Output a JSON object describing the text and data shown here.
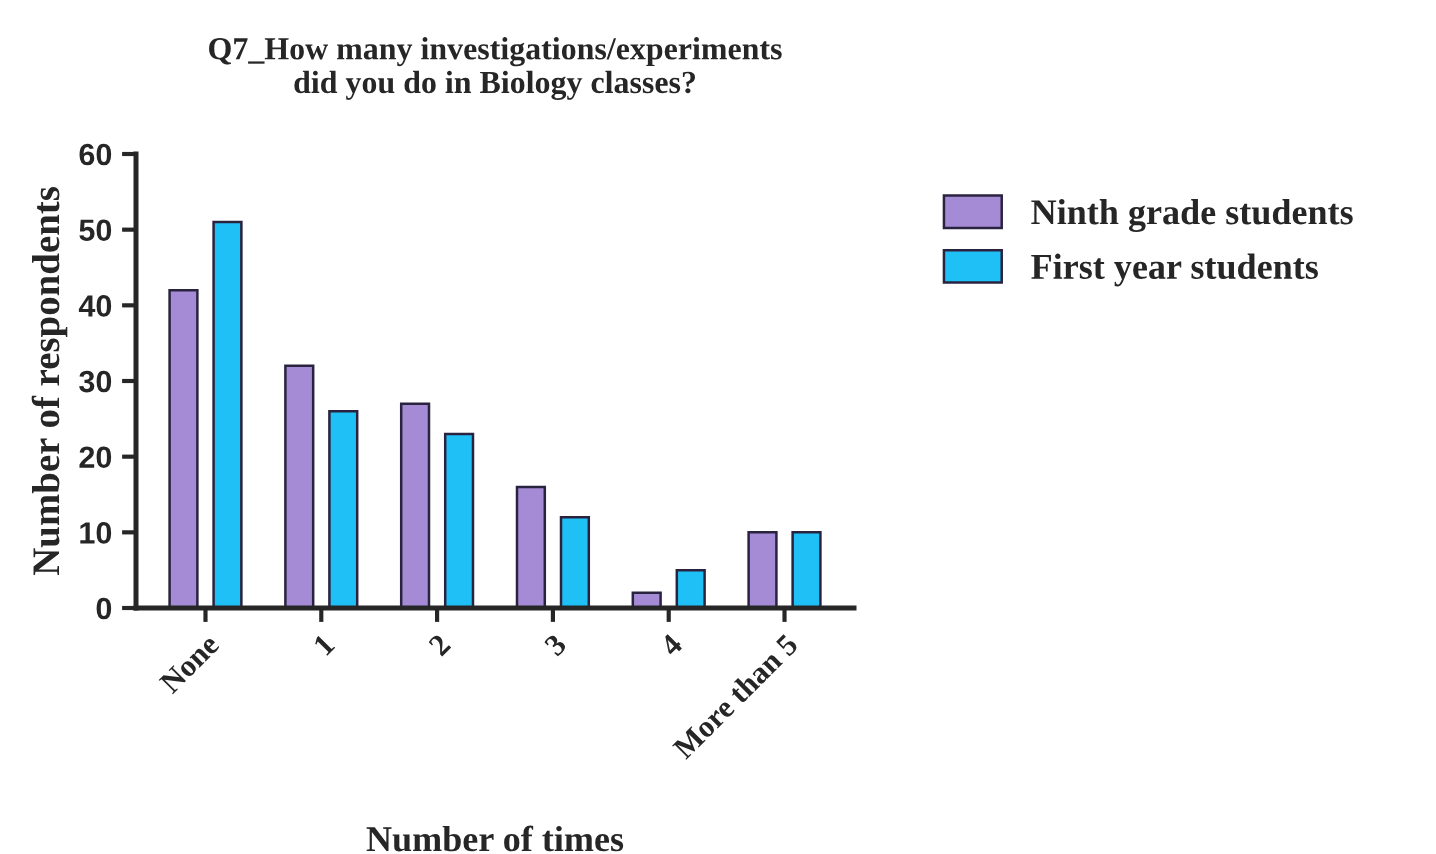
{
  "chart_data": {
    "type": "bar",
    "title": "Q7_How many investigations/experiments\ndid you do in Biology classes?",
    "xlabel": "Number of times",
    "ylabel": "Number of respondents",
    "categories": [
      "None",
      "1",
      "2",
      "3",
      "4",
      "More than 5"
    ],
    "series": [
      {
        "name": "Ninth grade students",
        "color": "#a58bd6",
        "values": [
          42,
          32,
          27,
          16,
          2,
          10
        ]
      },
      {
        "name": "First year students",
        "color": "#1fc0f6",
        "values": [
          51,
          26,
          23,
          12,
          5,
          10
        ]
      }
    ],
    "ylim": [
      0,
      60
    ],
    "yticks": [
      0,
      10,
      20,
      30,
      40,
      50,
      60
    ],
    "grid": false,
    "legend": "right"
  }
}
